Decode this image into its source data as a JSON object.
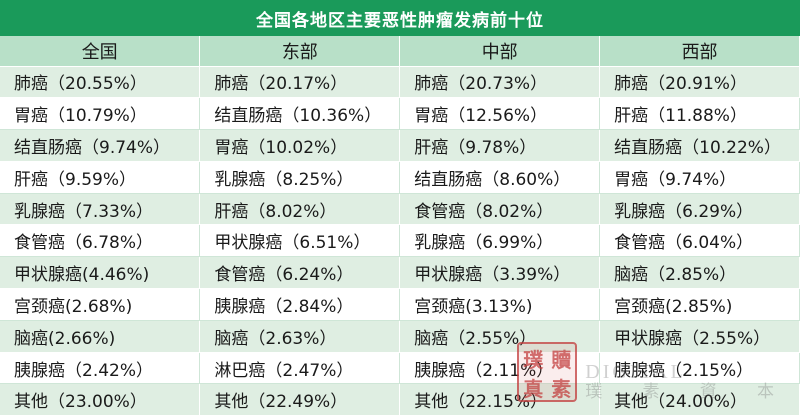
{
  "title": "全国各地区主要恶性肿瘤发病前十位",
  "columns": [
    "全国",
    "东部",
    "中部",
    "西部"
  ],
  "rows": [
    [
      "肺癌（20.55%）",
      "肺癌（20.17%）",
      "肺癌（20.73%）",
      "肺癌（20.91%）"
    ],
    [
      "胃癌（10.79%）",
      "结直肠癌（10.36%）",
      "胃癌（12.56%）",
      "肝癌（11.88%）"
    ],
    [
      "结直肠癌（9.74%）",
      "胃癌（10.02%）",
      "肝癌（9.78%）",
      "结直肠癌（10.22%）"
    ],
    [
      "肝癌（9.59%）",
      "乳腺癌（8.25%）",
      "结直肠癌（8.60%）",
      "胃癌（9.74%）"
    ],
    [
      "乳腺癌（7.33%）",
      "肝癌（8.02%）",
      "食管癌（8.02%）",
      "乳腺癌（6.29%）"
    ],
    [
      "食管癌（6.78%）",
      "甲状腺癌（6.51%）",
      "乳腺癌（6.99%）",
      "食管癌（6.04%）"
    ],
    [
      "甲状腺癌(4.46%)",
      "食管癌（6.24%）",
      "甲状腺癌（3.39%）",
      "脑癌（2.85%）"
    ],
    [
      "宫颈癌(2.68%)",
      "胰腺癌（2.84%）",
      "宫颈癌(3.13%)",
      "宫颈癌(2.85%)"
    ],
    [
      "脑癌(2.66%)",
      "脑癌（2.63%）",
      "脑癌（2.55%）",
      "甲状腺癌（2.55%）"
    ],
    [
      "胰腺癌（2.42%）",
      "淋巴癌（2.47%）",
      "胰腺癌（2.11%）",
      "胰腺癌（2.15%）"
    ],
    [
      "其他（23.00%）",
      "其他（22.49%）",
      "其他（22.15%）",
      "其他（24.00%）"
    ]
  ],
  "watermark": {
    "seal_chars": [
      "璞",
      "贖",
      "真",
      "素"
    ],
    "text_top": "DIGITAL",
    "text_bottom": "璞 素 資 本"
  },
  "colors": {
    "title_bg": "#1a9a5a",
    "header_bg": "#b8e0c8",
    "row_alt_bg": "#dfeee2",
    "seal_red": "#c23a3a"
  }
}
